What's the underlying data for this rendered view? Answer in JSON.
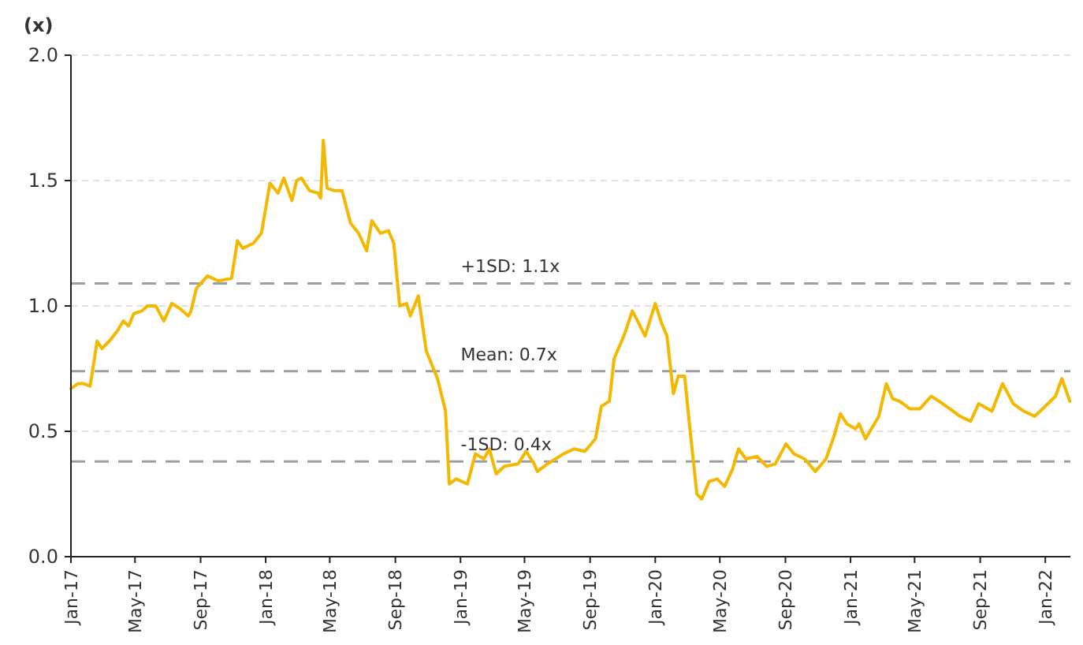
{
  "chart_data": {
    "type": "line",
    "ylabel": "(x)",
    "x": [
      "2017-01-01",
      "2017-01-14",
      "2017-01-25",
      "2017-02-06",
      "2017-02-19",
      "2017-02-28",
      "2017-03-14",
      "2017-03-29",
      "2017-04-09",
      "2017-04-19",
      "2017-04-29",
      "2017-05-14",
      "2017-05-24",
      "2017-06-09",
      "2017-06-24",
      "2017-07-09",
      "2017-07-24",
      "2017-08-09",
      "2017-08-14",
      "2017-08-24",
      "2017-09-14",
      "2017-10-04",
      "2017-10-29",
      "2017-11-09",
      "2017-11-19",
      "2017-12-09",
      "2017-12-24",
      "2018-01-09",
      "2018-01-24",
      "2018-02-04",
      "2018-02-19",
      "2018-02-28",
      "2018-03-09",
      "2018-03-24",
      "2018-04-09",
      "2018-04-14",
      "2018-04-19",
      "2018-04-26",
      "2018-05-09",
      "2018-05-24",
      "2018-06-09",
      "2018-06-24",
      "2018-07-09",
      "2018-07-19",
      "2018-08-04",
      "2018-08-19",
      "2018-08-29",
      "2018-09-09",
      "2018-09-22",
      "2018-09-29",
      "2018-10-14",
      "2018-10-29",
      "2018-11-19",
      "2018-12-04",
      "2018-12-11",
      "2018-12-24",
      "2019-01-14",
      "2019-01-29",
      "2019-02-14",
      "2019-02-24",
      "2019-03-09",
      "2019-03-24",
      "2019-04-19",
      "2019-05-04",
      "2019-05-19",
      "2019-05-25",
      "2019-06-13",
      "2019-07-13",
      "2019-08-02",
      "2019-08-22",
      "2019-09-11",
      "2019-09-22",
      "2019-10-07",
      "2019-10-16",
      "2019-11-05",
      "2019-11-19",
      "2019-11-29",
      "2019-12-13",
      "2020-01-01",
      "2020-01-13",
      "2020-01-23",
      "2020-02-04",
      "2020-02-13",
      "2020-02-25",
      "2020-03-07",
      "2020-03-19",
      "2020-03-28",
      "2020-04-11",
      "2020-04-26",
      "2020-05-10",
      "2020-05-25",
      "2020-06-05",
      "2020-06-19",
      "2020-07-10",
      "2020-07-28",
      "2020-08-13",
      "2020-09-02",
      "2020-09-17",
      "2020-10-07",
      "2020-10-27",
      "2020-11-16",
      "2020-12-01",
      "2020-12-13",
      "2020-12-25",
      "2021-01-10",
      "2021-01-17",
      "2021-01-29",
      "2021-02-23",
      "2021-03-09",
      "2021-03-21",
      "2021-04-03",
      "2021-04-22",
      "2021-05-11",
      "2021-06-01",
      "2021-06-16",
      "2021-07-06",
      "2021-07-25",
      "2021-08-14",
      "2021-08-29",
      "2021-09-23",
      "2021-10-13",
      "2021-11-02",
      "2021-11-22",
      "2021-12-12",
      "2022-01-01",
      "2022-01-20",
      "2022-02-01",
      "2022-02-16"
    ],
    "series": [
      {
        "color": "#f5b800",
        "values": [
          0.67,
          0.69,
          0.69,
          0.68,
          0.86,
          0.83,
          0.86,
          0.9,
          0.94,
          0.92,
          0.97,
          0.98,
          1.0,
          1.0,
          0.94,
          1.01,
          0.99,
          0.96,
          0.98,
          1.07,
          1.12,
          1.1,
          1.11,
          1.26,
          1.23,
          1.25,
          1.29,
          1.49,
          1.45,
          1.51,
          1.42,
          1.5,
          1.51,
          1.46,
          1.45,
          1.43,
          1.66,
          1.47,
          1.46,
          1.46,
          1.33,
          1.29,
          1.22,
          1.34,
          1.29,
          1.3,
          1.25,
          1.0,
          1.01,
          0.96,
          1.04,
          0.82,
          0.71,
          0.58,
          0.29,
          0.31,
          0.29,
          0.41,
          0.39,
          0.43,
          0.33,
          0.36,
          0.37,
          0.42,
          0.37,
          0.34,
          0.37,
          0.41,
          0.43,
          0.42,
          0.47,
          0.6,
          0.62,
          0.79,
          0.89,
          0.98,
          0.94,
          0.88,
          1.01,
          0.93,
          0.88,
          0.65,
          0.72,
          0.72,
          0.49,
          0.25,
          0.23,
          0.3,
          0.31,
          0.28,
          0.35,
          0.43,
          0.39,
          0.4,
          0.36,
          0.37,
          0.45,
          0.41,
          0.39,
          0.34,
          0.39,
          0.48,
          0.57,
          0.53,
          0.51,
          0.53,
          0.47,
          0.56,
          0.69,
          0.63,
          0.62,
          0.59,
          0.59,
          0.64,
          0.62,
          0.59,
          0.56,
          0.54,
          0.61,
          0.58,
          0.69,
          0.61,
          0.58,
          0.56,
          0.6,
          0.64,
          0.71,
          0.62
        ]
      }
    ],
    "xlim": [
      "2017-01-01",
      "2022-02-17"
    ],
    "xticks": [
      {
        "value": "2017-01-01",
        "label": "Jan-17"
      },
      {
        "value": "2017-05-01",
        "label": "May-17"
      },
      {
        "value": "2017-09-01",
        "label": "Sep-17"
      },
      {
        "value": "2018-01-01",
        "label": "Jan-18"
      },
      {
        "value": "2018-05-01",
        "label": "May-18"
      },
      {
        "value": "2018-09-01",
        "label": "Sep-18"
      },
      {
        "value": "2019-01-01",
        "label": "Jan-19"
      },
      {
        "value": "2019-05-01",
        "label": "May-19"
      },
      {
        "value": "2019-09-01",
        "label": "Sep-19"
      },
      {
        "value": "2020-01-01",
        "label": "Jan-20"
      },
      {
        "value": "2020-05-01",
        "label": "May-20"
      },
      {
        "value": "2020-09-01",
        "label": "Sep-20"
      },
      {
        "value": "2021-01-01",
        "label": "Jan-21"
      },
      {
        "value": "2021-05-01",
        "label": "May-21"
      },
      {
        "value": "2021-09-01",
        "label": "Sep-21"
      },
      {
        "value": "2022-01-01",
        "label": "Jan-22"
      }
    ],
    "ylim": [
      0,
      2
    ],
    "yticks": [
      {
        "value": 0,
        "label": "0.0"
      },
      {
        "value": 0.5,
        "label": "0.5"
      },
      {
        "value": 1,
        "label": "1.0"
      },
      {
        "value": 1.5,
        "label": "1.5"
      },
      {
        "value": 2,
        "label": "2.0"
      }
    ],
    "grid": "y",
    "marker": "none",
    "line_style": "solid",
    "ref_lines": [
      {
        "axis": "y",
        "value": 1.09,
        "label": "+1SD: 1.1x",
        "color": "#9e9e9e",
        "line_style": "dashed"
      },
      {
        "axis": "y",
        "value": 0.74,
        "label": "Mean: 0.7x",
        "color": "#9e9e9e",
        "line_style": "dashed"
      },
      {
        "axis": "y",
        "value": 0.38,
        "label": "-1SD: 0.4x",
        "color": "#9e9e9e",
        "line_style": "dashed"
      }
    ]
  }
}
